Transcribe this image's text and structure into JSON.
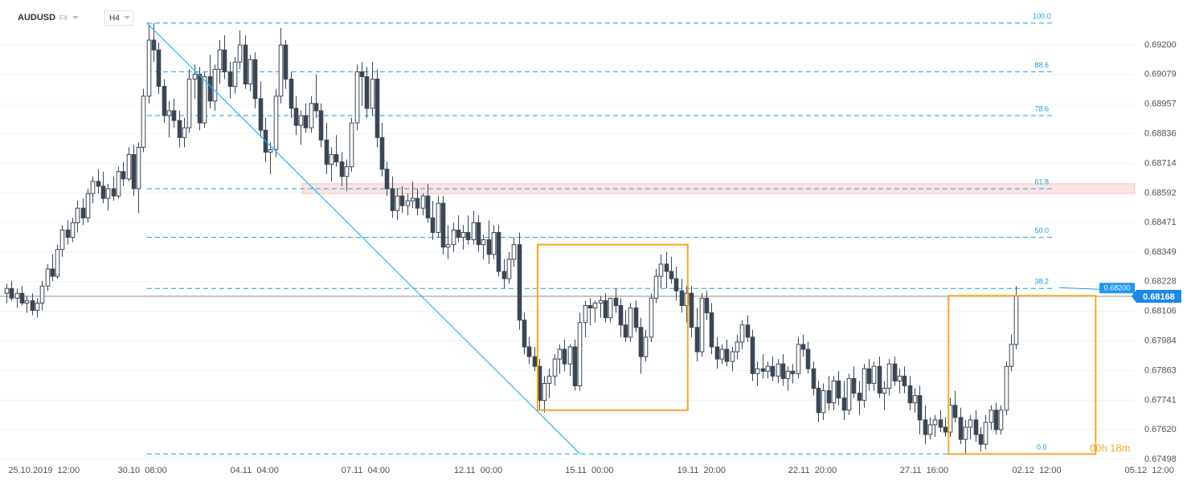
{
  "chart_data": {
    "type": "candlestick",
    "symbol": "AUDUSD",
    "market": "FX",
    "interval": "H4",
    "up_color": "#ffffff",
    "down_color": "#3a4654",
    "grid": true,
    "xlim": [
      -1.27,
      233.5
    ],
    "ylim": [
      0.67485,
      0.69385
    ],
    "yticks": [
      {
        "value": 0.692,
        "label": "0.69200"
      },
      {
        "value": 0.69079,
        "label": "0.69079"
      },
      {
        "value": 0.68957,
        "label": "0.68957"
      },
      {
        "value": 0.68836,
        "label": "0.68836"
      },
      {
        "value": 0.68714,
        "label": "0.68714"
      },
      {
        "value": 0.68592,
        "label": "0.68592"
      },
      {
        "value": 0.68471,
        "label": "0.68471"
      },
      {
        "value": 0.68349,
        "label": "0.68349"
      },
      {
        "value": 0.68228,
        "label": "0.68228"
      },
      {
        "value": 0.68106,
        "label": "0.68106"
      },
      {
        "value": 0.67984,
        "label": "0.67984"
      },
      {
        "value": 0.67863,
        "label": "0.67863"
      },
      {
        "value": 0.67741,
        "label": "0.67741"
      },
      {
        "value": 0.6762,
        "label": "0.67620"
      },
      {
        "value": 0.67498,
        "label": "0.67498"
      }
    ],
    "xticks": [
      {
        "value": 7.4,
        "label": "25.10.2019  12:00"
      },
      {
        "value": 26.8,
        "label": "30.10  08:00"
      },
      {
        "value": 48.9,
        "label": "04.11  04:00"
      },
      {
        "value": 70.8,
        "label": "07.11  04:00"
      },
      {
        "value": 93.0,
        "label": "12.11  00:00"
      },
      {
        "value": 114.9,
        "label": "15.11  00:00"
      },
      {
        "value": 137.0,
        "label": "19.11  20:00"
      },
      {
        "value": 158.9,
        "label": "22.11  20:00"
      },
      {
        "value": 180.9,
        "label": "27.11  16:00"
      },
      {
        "value": 203.1,
        "label": "02.12  12:00"
      },
      {
        "value": 225.3,
        "label": "05.12  12:00"
      }
    ],
    "current_price": 0.68168,
    "current_price_color": "#1e88e5",
    "alert_price": {
      "value": 0.682,
      "label": "0.68200"
    },
    "alert_color": "#2196f3",
    "timer": "00h 18m",
    "timer_color": "#f5a623",
    "zone": {
      "x": [
        58.3,
        222.4
      ],
      "y": [
        0.6859,
        0.6863
      ],
      "color": "#fde4e4"
    },
    "trendline": {
      "x": [
        27.7,
        113.1
      ],
      "y": [
        0.6929,
        0.6752
      ],
      "color": "#29b6f6"
    },
    "box_color": "#f5a623",
    "boxes": [
      {
        "x": [
          104.7,
          134.3
        ],
        "y": [
          0.677,
          0.6838
        ]
      },
      {
        "x": [
          185.7,
          214.7
        ],
        "y": [
          0.6752,
          0.6817
        ]
      }
    ],
    "fib": {
      "x": [
        27.7,
        206.3
      ],
      "color": "#1a9fd9",
      "levels": [
        {
          "label": "100.0",
          "price": 0.6929
        },
        {
          "label": "88.6",
          "price": 0.6909
        },
        {
          "label": "78.6",
          "price": 0.6891
        },
        {
          "label": "61.8",
          "price": 0.6861
        },
        {
          "label": "50.0",
          "price": 0.6841
        },
        {
          "label": "38.2",
          "price": 0.682
        },
        {
          "label": "0.0",
          "price": 0.6752
        }
      ]
    },
    "ohlc": [
      [
        0.6818,
        0.6822,
        0.6814,
        0.682
      ],
      [
        0.682,
        0.6823,
        0.6815,
        0.6816
      ],
      [
        0.6816,
        0.682,
        0.6812,
        0.6818
      ],
      [
        0.6818,
        0.6821,
        0.6813,
        0.6814
      ],
      [
        0.6814,
        0.6817,
        0.681,
        0.6815
      ],
      [
        0.6815,
        0.6818,
        0.6809,
        0.6811
      ],
      [
        0.6811,
        0.6816,
        0.6808,
        0.6814
      ],
      [
        0.6814,
        0.6823,
        0.6811,
        0.6821
      ],
      [
        0.6821,
        0.683,
        0.6819,
        0.6828
      ],
      [
        0.6828,
        0.6834,
        0.6823,
        0.6825
      ],
      [
        0.6825,
        0.6838,
        0.6824,
        0.6836
      ],
      [
        0.6836,
        0.6846,
        0.6833,
        0.6844
      ],
      [
        0.6844,
        0.6848,
        0.6838,
        0.6841
      ],
      [
        0.6841,
        0.6849,
        0.6839,
        0.6847
      ],
      [
        0.6847,
        0.6856,
        0.6843,
        0.6853
      ],
      [
        0.6853,
        0.6857,
        0.6846,
        0.6849
      ],
      [
        0.6849,
        0.6861,
        0.6847,
        0.6859
      ],
      [
        0.6859,
        0.6866,
        0.6855,
        0.6864
      ],
      [
        0.6864,
        0.6869,
        0.6859,
        0.6862
      ],
      [
        0.6862,
        0.6868,
        0.6855,
        0.6857
      ],
      [
        0.6857,
        0.6863,
        0.6852,
        0.6861
      ],
      [
        0.6861,
        0.6866,
        0.6856,
        0.6858
      ],
      [
        0.6858,
        0.687,
        0.6857,
        0.6868
      ],
      [
        0.6868,
        0.6872,
        0.6862,
        0.6865
      ],
      [
        0.6865,
        0.6878,
        0.6864,
        0.6875
      ],
      [
        0.6875,
        0.6879,
        0.6858,
        0.6861
      ],
      [
        0.6861,
        0.688,
        0.6851,
        0.6878
      ],
      [
        0.6878,
        0.6902,
        0.6876,
        0.6899
      ],
      [
        0.6899,
        0.6928,
        0.6896,
        0.6922
      ],
      [
        0.6922,
        0.6929,
        0.6913,
        0.6918
      ],
      [
        0.6918,
        0.6921,
        0.69,
        0.6903
      ],
      [
        0.6903,
        0.6906,
        0.6888,
        0.6891
      ],
      [
        0.6891,
        0.6897,
        0.6882,
        0.6893
      ],
      [
        0.6893,
        0.6898,
        0.6886,
        0.6889
      ],
      [
        0.6889,
        0.6893,
        0.6878,
        0.6882
      ],
      [
        0.6882,
        0.689,
        0.6878,
        0.6886
      ],
      [
        0.6886,
        0.691,
        0.6884,
        0.6906
      ],
      [
        0.6906,
        0.6912,
        0.6898,
        0.6908
      ],
      [
        0.6908,
        0.6911,
        0.6885,
        0.6888
      ],
      [
        0.6888,
        0.6909,
        0.6886,
        0.6907
      ],
      [
        0.6907,
        0.6916,
        0.6894,
        0.6897
      ],
      [
        0.6897,
        0.6912,
        0.6893,
        0.691
      ],
      [
        0.691,
        0.6922,
        0.6904,
        0.6918
      ],
      [
        0.6918,
        0.6924,
        0.6906,
        0.6909
      ],
      [
        0.6909,
        0.6913,
        0.6898,
        0.6903
      ],
      [
        0.6903,
        0.6915,
        0.69,
        0.6913
      ],
      [
        0.6913,
        0.6926,
        0.691,
        0.692
      ],
      [
        0.692,
        0.6924,
        0.6902,
        0.6904
      ],
      [
        0.6904,
        0.6916,
        0.6901,
        0.6914
      ],
      [
        0.6914,
        0.6917,
        0.6894,
        0.6898
      ],
      [
        0.6898,
        0.6905,
        0.6882,
        0.6885
      ],
      [
        0.6885,
        0.689,
        0.6872,
        0.6876
      ],
      [
        0.6876,
        0.688,
        0.6867,
        0.6877
      ],
      [
        0.6877,
        0.6902,
        0.6874,
        0.6899
      ],
      [
        0.6899,
        0.6927,
        0.6896,
        0.692
      ],
      [
        0.692,
        0.6922,
        0.6902,
        0.6906
      ],
      [
        0.6906,
        0.6909,
        0.689,
        0.6894
      ],
      [
        0.6894,
        0.6899,
        0.6883,
        0.6887
      ],
      [
        0.6887,
        0.6893,
        0.6879,
        0.6891
      ],
      [
        0.6891,
        0.6896,
        0.6884,
        0.6886
      ],
      [
        0.6886,
        0.6899,
        0.6884,
        0.6896
      ],
      [
        0.6896,
        0.6908,
        0.689,
        0.6893
      ],
      [
        0.6893,
        0.6896,
        0.6878,
        0.6881
      ],
      [
        0.6881,
        0.6888,
        0.6867,
        0.6871
      ],
      [
        0.6871,
        0.6878,
        0.6864,
        0.6875
      ],
      [
        0.6875,
        0.6883,
        0.687,
        0.6872
      ],
      [
        0.6872,
        0.6876,
        0.6862,
        0.6866
      ],
      [
        0.6866,
        0.6873,
        0.686,
        0.687
      ],
      [
        0.687,
        0.689,
        0.6868,
        0.6888
      ],
      [
        0.6888,
        0.6912,
        0.6885,
        0.6909
      ],
      [
        0.6909,
        0.6913,
        0.6895,
        0.6907
      ],
      [
        0.6907,
        0.6911,
        0.689,
        0.6894
      ],
      [
        0.6894,
        0.6913,
        0.6891,
        0.6906
      ],
      [
        0.6906,
        0.691,
        0.6878,
        0.6882
      ],
      [
        0.6882,
        0.6888,
        0.6866,
        0.6869
      ],
      [
        0.6869,
        0.6872,
        0.6858,
        0.6861
      ],
      [
        0.6861,
        0.6866,
        0.6849,
        0.6852
      ],
      [
        0.6852,
        0.6861,
        0.6848,
        0.6858
      ],
      [
        0.6858,
        0.6862,
        0.6851,
        0.6854
      ],
      [
        0.6854,
        0.6859,
        0.685,
        0.6856
      ],
      [
        0.6856,
        0.6864,
        0.6853,
        0.6857
      ],
      [
        0.6857,
        0.6861,
        0.685,
        0.6853
      ],
      [
        0.6853,
        0.6859,
        0.685,
        0.6858
      ],
      [
        0.6858,
        0.6863,
        0.6847,
        0.6849
      ],
      [
        0.6849,
        0.6856,
        0.684,
        0.6843
      ],
      [
        0.6843,
        0.6858,
        0.6841,
        0.6855
      ],
      [
        0.6855,
        0.6858,
        0.6834,
        0.6837
      ],
      [
        0.6837,
        0.6846,
        0.6832,
        0.6838
      ],
      [
        0.6838,
        0.6847,
        0.6835,
        0.6844
      ],
      [
        0.6844,
        0.685,
        0.6839,
        0.6841
      ],
      [
        0.6841,
        0.6846,
        0.6836,
        0.6843
      ],
      [
        0.6843,
        0.685,
        0.6838,
        0.684
      ],
      [
        0.684,
        0.6852,
        0.6838,
        0.6847
      ],
      [
        0.6847,
        0.685,
        0.6835,
        0.6838
      ],
      [
        0.6838,
        0.6842,
        0.6832,
        0.684
      ],
      [
        0.684,
        0.6848,
        0.683,
        0.6834
      ],
      [
        0.6834,
        0.6846,
        0.6832,
        0.6843
      ],
      [
        0.6843,
        0.6846,
        0.6825,
        0.6827
      ],
      [
        0.6827,
        0.6832,
        0.682,
        0.6824
      ],
      [
        0.6824,
        0.6835,
        0.6822,
        0.6832
      ],
      [
        0.6832,
        0.6841,
        0.6829,
        0.6838
      ],
      [
        0.6838,
        0.6843,
        0.6803,
        0.6807
      ],
      [
        0.6807,
        0.681,
        0.6793,
        0.6796
      ],
      [
        0.6796,
        0.68,
        0.6789,
        0.6792
      ],
      [
        0.6792,
        0.6796,
        0.6786,
        0.6788
      ],
      [
        0.6788,
        0.6791,
        0.677,
        0.6774
      ],
      [
        0.6774,
        0.6784,
        0.6769,
        0.6781
      ],
      [
        0.6781,
        0.6787,
        0.6775,
        0.6784
      ],
      [
        0.6784,
        0.6793,
        0.678,
        0.6791
      ],
      [
        0.6791,
        0.6797,
        0.6785,
        0.6795
      ],
      [
        0.6795,
        0.6799,
        0.6786,
        0.6789
      ],
      [
        0.6789,
        0.6797,
        0.6784,
        0.6796
      ],
      [
        0.6796,
        0.6799,
        0.6778,
        0.678
      ],
      [
        0.678,
        0.681,
        0.6778,
        0.6806
      ],
      [
        0.6806,
        0.6815,
        0.68,
        0.6813
      ],
      [
        0.6813,
        0.6816,
        0.6805,
        0.6812
      ],
      [
        0.6812,
        0.6815,
        0.6806,
        0.6814
      ],
      [
        0.6814,
        0.6817,
        0.6808,
        0.6815
      ],
      [
        0.6815,
        0.6818,
        0.6806,
        0.6808
      ],
      [
        0.6808,
        0.6816,
        0.6806,
        0.6816
      ],
      [
        0.6816,
        0.682,
        0.681,
        0.6813
      ],
      [
        0.6813,
        0.6816,
        0.68,
        0.6805
      ],
      [
        0.6805,
        0.6811,
        0.6798,
        0.68
      ],
      [
        0.68,
        0.6814,
        0.6798,
        0.6812
      ],
      [
        0.6812,
        0.6815,
        0.6802,
        0.6804
      ],
      [
        0.6804,
        0.6808,
        0.6785,
        0.6792
      ],
      [
        0.6792,
        0.6803,
        0.679,
        0.68
      ],
      [
        0.68,
        0.6818,
        0.6798,
        0.6816
      ],
      [
        0.6816,
        0.6828,
        0.6814,
        0.6825
      ],
      [
        0.6825,
        0.6834,
        0.682,
        0.683
      ],
      [
        0.683,
        0.6835,
        0.682,
        0.6827
      ],
      [
        0.6827,
        0.6833,
        0.6822,
        0.6824
      ],
      [
        0.6824,
        0.6829,
        0.6815,
        0.6819
      ],
      [
        0.6819,
        0.6824,
        0.681,
        0.6813
      ],
      [
        0.6813,
        0.6821,
        0.6806,
        0.6818
      ],
      [
        0.6818,
        0.6821,
        0.68,
        0.6804
      ],
      [
        0.6804,
        0.6812,
        0.679,
        0.6794
      ],
      [
        0.6794,
        0.6818,
        0.6792,
        0.6816
      ],
      [
        0.6816,
        0.6819,
        0.6807,
        0.681
      ],
      [
        0.681,
        0.6814,
        0.6793,
        0.6796
      ],
      [
        0.6796,
        0.68,
        0.6787,
        0.6791
      ],
      [
        0.6791,
        0.6797,
        0.6789,
        0.6795
      ],
      [
        0.6795,
        0.6799,
        0.6788,
        0.679
      ],
      [
        0.679,
        0.6796,
        0.6786,
        0.6794
      ],
      [
        0.6794,
        0.6801,
        0.6791,
        0.6798
      ],
      [
        0.6798,
        0.6807,
        0.6795,
        0.6805
      ],
      [
        0.6805,
        0.6809,
        0.6798,
        0.68
      ],
      [
        0.68,
        0.6803,
        0.6782,
        0.6785
      ],
      [
        0.6785,
        0.679,
        0.678,
        0.6787
      ],
      [
        0.6787,
        0.6793,
        0.6783,
        0.6786
      ],
      [
        0.6786,
        0.679,
        0.6783,
        0.6788
      ],
      [
        0.6788,
        0.6792,
        0.6782,
        0.6784
      ],
      [
        0.6784,
        0.6791,
        0.6781,
        0.6789
      ],
      [
        0.6789,
        0.6793,
        0.678,
        0.6783
      ],
      [
        0.6783,
        0.6788,
        0.6778,
        0.6786
      ],
      [
        0.6786,
        0.6789,
        0.6781,
        0.6785
      ],
      [
        0.6785,
        0.68,
        0.6783,
        0.6797
      ],
      [
        0.6797,
        0.6801,
        0.6792,
        0.6795
      ],
      [
        0.6795,
        0.6798,
        0.6785,
        0.6787
      ],
      [
        0.6787,
        0.679,
        0.6776,
        0.6779
      ],
      [
        0.6779,
        0.6782,
        0.6765,
        0.6769
      ],
      [
        0.6769,
        0.6781,
        0.6766,
        0.6778
      ],
      [
        0.6778,
        0.6784,
        0.677,
        0.6773
      ],
      [
        0.6773,
        0.6784,
        0.677,
        0.6782
      ],
      [
        0.6782,
        0.6786,
        0.6772,
        0.6775
      ],
      [
        0.6775,
        0.6782,
        0.6766,
        0.677
      ],
      [
        0.677,
        0.6785,
        0.6768,
        0.6783
      ],
      [
        0.6783,
        0.6788,
        0.6775,
        0.6777
      ],
      [
        0.6777,
        0.6782,
        0.6768,
        0.6774
      ],
      [
        0.6774,
        0.6789,
        0.6771,
        0.6787
      ],
      [
        0.6787,
        0.6791,
        0.6778,
        0.6781
      ],
      [
        0.6781,
        0.679,
        0.6778,
        0.6788
      ],
      [
        0.6788,
        0.6792,
        0.6775,
        0.6777
      ],
      [
        0.6777,
        0.6782,
        0.677,
        0.6779
      ],
      [
        0.6779,
        0.6791,
        0.6776,
        0.6789
      ],
      [
        0.6789,
        0.6792,
        0.678,
        0.6782
      ],
      [
        0.6782,
        0.6787,
        0.6777,
        0.6784
      ],
      [
        0.6784,
        0.6788,
        0.6777,
        0.678
      ],
      [
        0.678,
        0.6784,
        0.677,
        0.6773
      ],
      [
        0.6773,
        0.6779,
        0.6769,
        0.6776
      ],
      [
        0.6776,
        0.678,
        0.676,
        0.6766
      ],
      [
        0.6766,
        0.6772,
        0.6756,
        0.676
      ],
      [
        0.676,
        0.6767,
        0.6758,
        0.6764
      ],
      [
        0.6764,
        0.6768,
        0.6759,
        0.6766
      ],
      [
        0.6766,
        0.677,
        0.6761,
        0.6763
      ],
      [
        0.6763,
        0.6767,
        0.6759,
        0.6761
      ],
      [
        0.6761,
        0.6775,
        0.6759,
        0.6772
      ],
      [
        0.6772,
        0.6778,
        0.6765,
        0.6767
      ],
      [
        0.6767,
        0.6771,
        0.6756,
        0.6758
      ],
      [
        0.6758,
        0.6766,
        0.6752,
        0.6763
      ],
      [
        0.6763,
        0.6768,
        0.6758,
        0.6766
      ],
      [
        0.6766,
        0.677,
        0.6757,
        0.676
      ],
      [
        0.676,
        0.6763,
        0.6753,
        0.6756
      ],
      [
        0.6756,
        0.6768,
        0.6754,
        0.6765
      ],
      [
        0.6765,
        0.6772,
        0.6762,
        0.677
      ],
      [
        0.677,
        0.6773,
        0.676,
        0.6762
      ],
      [
        0.6762,
        0.6772,
        0.676,
        0.677
      ],
      [
        0.677,
        0.679,
        0.6768,
        0.6788
      ],
      [
        0.6788,
        0.6801,
        0.6786,
        0.6797
      ],
      [
        0.6797,
        0.6821,
        0.6795,
        0.68168
      ]
    ]
  }
}
